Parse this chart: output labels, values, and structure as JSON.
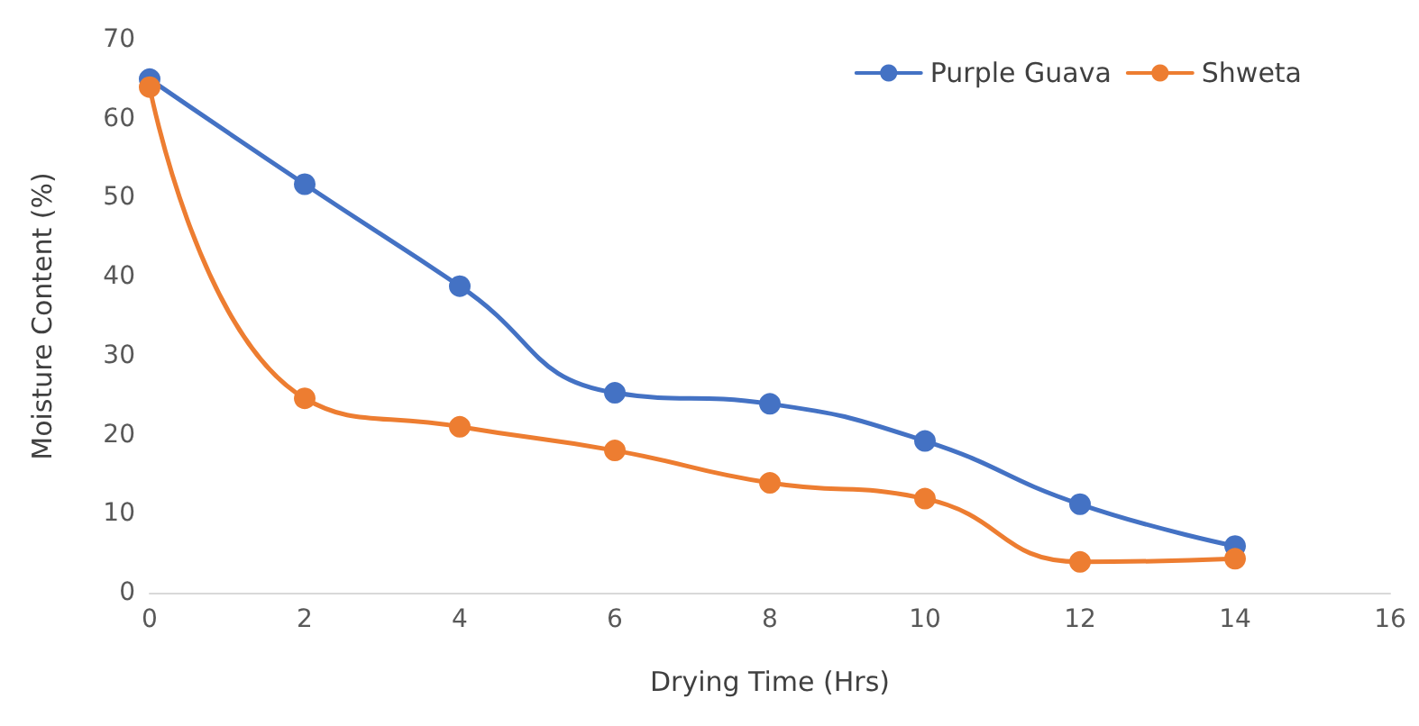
{
  "chart_data": {
    "type": "line",
    "xlabel": "Drying Time (Hrs)",
    "ylabel": "Moisture Content (%)",
    "x": [
      0,
      2,
      4,
      6,
      8,
      10,
      12,
      14
    ],
    "series": [
      {
        "name": "Purple Guava",
        "color": "#4472c4",
        "values": [
          65,
          51.7,
          38.8,
          25.3,
          23.9,
          19.2,
          11.2,
          5.9
        ]
      },
      {
        "name": "Shweta",
        "color": "#ed7d31",
        "values": [
          64,
          24.6,
          21,
          18,
          13.9,
          11.9,
          3.9,
          4.3
        ]
      }
    ],
    "xlim": [
      0,
      16
    ],
    "xticks": [
      0,
      2,
      4,
      6,
      8,
      10,
      12,
      14,
      16
    ],
    "ylim": [
      0,
      70
    ],
    "yticks": [
      0,
      10,
      20,
      30,
      40,
      50,
      60,
      70
    ],
    "grid": false,
    "legend": "top right",
    "marker": "circle",
    "line_style": "solid"
  }
}
